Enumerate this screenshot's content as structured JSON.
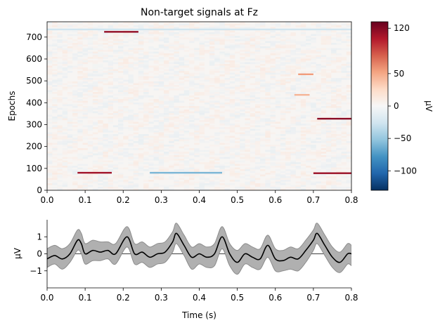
{
  "chart_data": [
    {
      "type": "heatmap",
      "title": "Non-target signals at Fz",
      "xlabel": "",
      "ylabel": "Epochs",
      "xlim": [
        0.0,
        0.8
      ],
      "ylim": [
        0,
        770
      ],
      "xticks": [
        "0.0",
        "0.1",
        "0.2",
        "0.3",
        "0.4",
        "0.5",
        "0.6",
        "0.7",
        "0.8"
      ],
      "yticks": [
        "0",
        "100",
        "200",
        "300",
        "400",
        "500",
        "600",
        "700"
      ],
      "colormap": "RdBu_r",
      "color_range": [
        -130,
        130
      ],
      "colorbar": {
        "label": "µV",
        "ticks": [
          "120",
          "50",
          "0",
          "−50",
          "−100"
        ],
        "tick_values": [
          120,
          50,
          0,
          -50,
          -100
        ],
        "stops": [
          "#053061",
          "#2166ac",
          "#4393c3",
          "#92c5de",
          "#d1e5f0",
          "#f7f7f7",
          "#fddbc7",
          "#f4a582",
          "#d6604d",
          "#b2182b",
          "#67001f"
        ]
      },
      "highlights": [
        {
          "epoch": 724,
          "t_start": 0.15,
          "t_end": 0.24,
          "value": 115
        },
        {
          "epoch": 80,
          "t_start": 0.08,
          "t_end": 0.17,
          "value": 110
        },
        {
          "epoch": 327,
          "t_start": 0.71,
          "t_end": 0.8,
          "value": 118
        },
        {
          "epoch": 78,
          "t_start": 0.7,
          "t_end": 0.8,
          "value": 112
        },
        {
          "epoch": 80,
          "t_start": 0.27,
          "t_end": 0.46,
          "value": -60
        },
        {
          "epoch": 530,
          "t_start": 0.66,
          "t_end": 0.7,
          "value": 55
        },
        {
          "epoch": 436,
          "t_start": 0.65,
          "t_end": 0.69,
          "value": 45
        },
        {
          "epoch": 735,
          "t_start": 0.0,
          "t_end": 0.8,
          "value": -25
        }
      ]
    },
    {
      "type": "line",
      "title": "",
      "xlabel": "Time (s)",
      "ylabel": "µV",
      "xlim": [
        0.0,
        0.8
      ],
      "ylim": [
        -2.0,
        2.0
      ],
      "xticks": [
        "0.0",
        "0.1",
        "0.2",
        "0.3",
        "0.4",
        "0.5",
        "0.6",
        "0.7",
        "0.8"
      ],
      "yticks": [
        "1",
        "0",
        "−1"
      ],
      "ytick_values": [
        1,
        0,
        -1
      ],
      "band_color": "#b0b0b0",
      "line_color": "#000000",
      "series": [
        {
          "name": "mean",
          "x": [
            0.0,
            0.02,
            0.04,
            0.06,
            0.08,
            0.09,
            0.1,
            0.12,
            0.14,
            0.16,
            0.18,
            0.21,
            0.23,
            0.25,
            0.27,
            0.29,
            0.31,
            0.33,
            0.34,
            0.36,
            0.38,
            0.4,
            0.42,
            0.44,
            0.46,
            0.48,
            0.5,
            0.52,
            0.54,
            0.56,
            0.58,
            0.6,
            0.62,
            0.64,
            0.66,
            0.68,
            0.7,
            0.71,
            0.73,
            0.75,
            0.77,
            0.79,
            0.8
          ],
          "y": [
            -0.3,
            -0.1,
            -0.3,
            0.0,
            0.8,
            0.6,
            0.0,
            0.2,
            0.1,
            0.2,
            0.0,
            1.0,
            0.0,
            0.1,
            -0.2,
            0.0,
            0.1,
            0.7,
            1.2,
            0.5,
            -0.2,
            0.0,
            -0.2,
            0.0,
            1.0,
            0.0,
            -0.5,
            0.0,
            -0.2,
            -0.3,
            0.5,
            -0.3,
            -0.4,
            -0.2,
            -0.3,
            0.2,
            0.8,
            1.2,
            0.5,
            -0.2,
            -0.5,
            0.0,
            0.0
          ]
        },
        {
          "name": "lower",
          "x": [
            0.0,
            0.02,
            0.04,
            0.06,
            0.08,
            0.09,
            0.1,
            0.12,
            0.14,
            0.16,
            0.18,
            0.21,
            0.23,
            0.25,
            0.27,
            0.29,
            0.31,
            0.33,
            0.34,
            0.36,
            0.38,
            0.4,
            0.42,
            0.44,
            0.46,
            0.48,
            0.5,
            0.52,
            0.54,
            0.56,
            0.58,
            0.6,
            0.62,
            0.64,
            0.66,
            0.68,
            0.7,
            0.71,
            0.73,
            0.75,
            0.77,
            0.79,
            0.8
          ],
          "y": [
            -0.8,
            -0.6,
            -0.9,
            -0.5,
            0.2,
            0.0,
            -0.6,
            -0.4,
            -0.4,
            -0.3,
            -0.6,
            0.4,
            -0.6,
            -0.5,
            -0.8,
            -0.6,
            -0.5,
            0.1,
            0.6,
            -0.1,
            -0.9,
            -0.6,
            -0.8,
            -0.7,
            0.3,
            -0.7,
            -1.2,
            -0.6,
            -0.8,
            -0.9,
            -0.2,
            -1.0,
            -1.0,
            -0.9,
            -1.0,
            -0.5,
            0.2,
            0.6,
            -0.1,
            -0.8,
            -1.1,
            -0.6,
            -0.7
          ]
        },
        {
          "name": "upper",
          "x": [
            0.0,
            0.02,
            0.04,
            0.06,
            0.08,
            0.09,
            0.1,
            0.12,
            0.14,
            0.16,
            0.18,
            0.21,
            0.23,
            0.25,
            0.27,
            0.29,
            0.31,
            0.33,
            0.34,
            0.36,
            0.38,
            0.4,
            0.42,
            0.44,
            0.46,
            0.48,
            0.5,
            0.52,
            0.54,
            0.56,
            0.58,
            0.6,
            0.62,
            0.64,
            0.66,
            0.68,
            0.7,
            0.71,
            0.73,
            0.75,
            0.77,
            0.79,
            0.8
          ],
          "y": [
            0.3,
            0.5,
            0.3,
            0.6,
            1.4,
            1.2,
            0.6,
            0.8,
            0.7,
            0.7,
            0.6,
            1.6,
            0.6,
            0.7,
            0.4,
            0.6,
            0.7,
            1.3,
            1.8,
            1.1,
            0.4,
            0.6,
            0.4,
            0.6,
            1.6,
            0.6,
            0.2,
            0.6,
            0.4,
            0.3,
            1.1,
            0.3,
            0.2,
            0.4,
            0.3,
            0.8,
            1.4,
            1.8,
            1.1,
            0.4,
            0.1,
            0.6,
            0.5
          ]
        }
      ]
    }
  ]
}
